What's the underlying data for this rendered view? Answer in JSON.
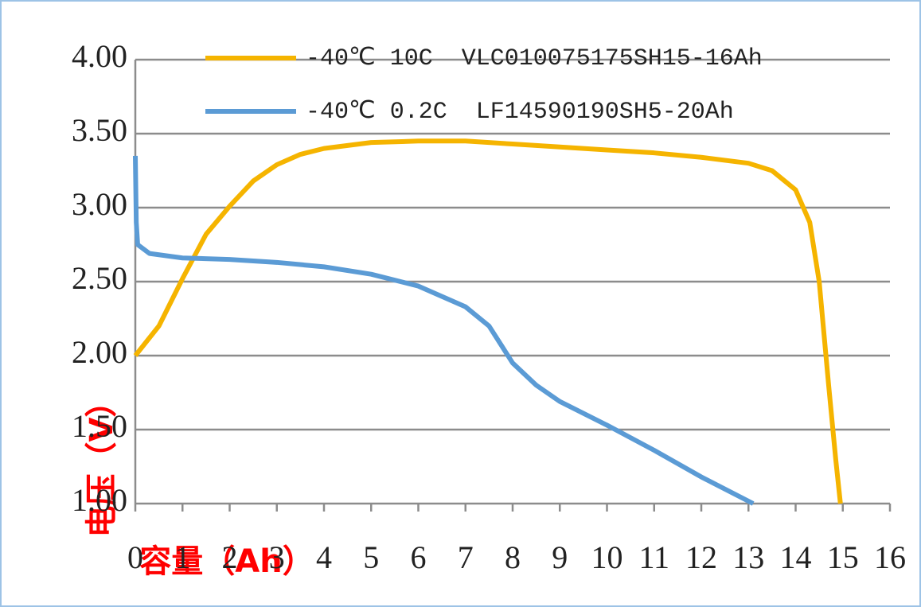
{
  "chart_data": {
    "type": "line",
    "x_label": "容量（Ah）",
    "y_label": "电压（V）",
    "xlim": [
      0,
      16
    ],
    "xticks": [
      0,
      1,
      2,
      3,
      4,
      5,
      6,
      7,
      8,
      9,
      10,
      11,
      12,
      13,
      14,
      15,
      16
    ],
    "ylim": [
      1,
      4
    ],
    "yticks": [
      {
        "value": 1,
        "label": "1.00"
      },
      {
        "value": 1.5,
        "label": "1.50"
      },
      {
        "value": 2,
        "label": "2.00"
      },
      {
        "value": 2.5,
        "label": "2.50"
      },
      {
        "value": 3,
        "label": "3.00"
      },
      {
        "value": 3.5,
        "label": "3.50"
      },
      {
        "value": 4,
        "label": "4.00"
      }
    ],
    "grid": true,
    "series": [
      {
        "name": "-40℃ 10C  VLC010075175SH15-16Ah",
        "color": "#f5b400",
        "x": [
          0,
          0.5,
          1,
          1.5,
          2,
          2.5,
          3,
          3.5,
          4,
          5,
          6,
          7,
          8,
          9,
          10,
          11,
          12,
          13,
          13.5,
          14,
          14.3,
          14.5,
          14.7,
          14.85,
          14.95
        ],
        "values": [
          2.0,
          2.2,
          2.52,
          2.82,
          3.01,
          3.18,
          3.29,
          3.36,
          3.4,
          3.44,
          3.45,
          3.45,
          3.43,
          3.41,
          3.39,
          3.37,
          3.34,
          3.3,
          3.25,
          3.12,
          2.9,
          2.5,
          1.8,
          1.3,
          1.0
        ]
      },
      {
        "name": "-40℃ 0.2C  LF14590190SH5-20Ah",
        "color": "#5b9bd5",
        "x": [
          0,
          0.02,
          0.05,
          0.3,
          1,
          2,
          3,
          4,
          5,
          6,
          7,
          7.5,
          8,
          8.5,
          9,
          10,
          11,
          12,
          13.1
        ],
        "values": [
          3.35,
          2.9,
          2.75,
          2.69,
          2.66,
          2.65,
          2.63,
          2.6,
          2.55,
          2.47,
          2.33,
          2.2,
          1.95,
          1.8,
          1.69,
          1.53,
          1.36,
          1.18,
          1.0
        ]
      }
    ]
  }
}
